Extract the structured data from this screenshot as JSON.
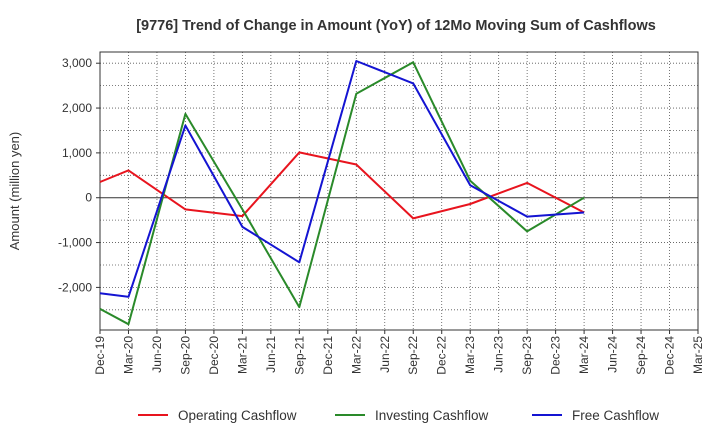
{
  "chart_data": {
    "type": "line",
    "title": "[9776]  Trend of Change in Amount (YoY) of 12Mo Moving Sum of Cashflows",
    "xlabel": "",
    "ylabel": "Amount (million yen)",
    "ylim": [
      -2950,
      3250
    ],
    "yticks": [
      3000,
      2000,
      1000,
      0,
      -1000,
      -2000
    ],
    "ytick_labels": [
      "3,000",
      "2,000",
      "1,000",
      "0",
      "-1,000",
      "-2,000"
    ],
    "grid": true,
    "legend_position": "bottom",
    "categories": [
      "Dec-19",
      "Mar-20",
      "Jun-20",
      "Sep-20",
      "Dec-20",
      "Mar-21",
      "Jun-21",
      "Sep-21",
      "Dec-21",
      "Mar-22",
      "Jun-22",
      "Sep-22",
      "Dec-22",
      "Mar-23",
      "Jun-23",
      "Sep-23",
      "Dec-23",
      "Mar-24",
      "Jun-24",
      "Sep-24",
      "Dec-24",
      "Mar-25"
    ],
    "series": [
      {
        "name": "Operating Cashflow",
        "color": "#e8141e",
        "values": [
          350,
          610,
          null,
          -260,
          null,
          -410,
          null,
          1010,
          null,
          740,
          null,
          -460,
          null,
          -140,
          null,
          330,
          null,
          -330,
          null,
          null,
          null,
          null
        ]
      },
      {
        "name": "Investing Cashflow",
        "color": "#2a8a2a",
        "values": [
          -2480,
          -2820,
          null,
          1870,
          null,
          -260,
          null,
          -2440,
          null,
          2320,
          null,
          3020,
          null,
          380,
          null,
          -750,
          null,
          0,
          null,
          null,
          null,
          null
        ]
      },
      {
        "name": "Free Cashflow",
        "color": "#1414d2",
        "values": [
          -2130,
          -2210,
          null,
          1610,
          null,
          -650,
          null,
          -1440,
          null,
          3050,
          null,
          2550,
          null,
          280,
          null,
          -420,
          null,
          -330,
          null,
          null,
          null,
          null
        ]
      }
    ]
  }
}
